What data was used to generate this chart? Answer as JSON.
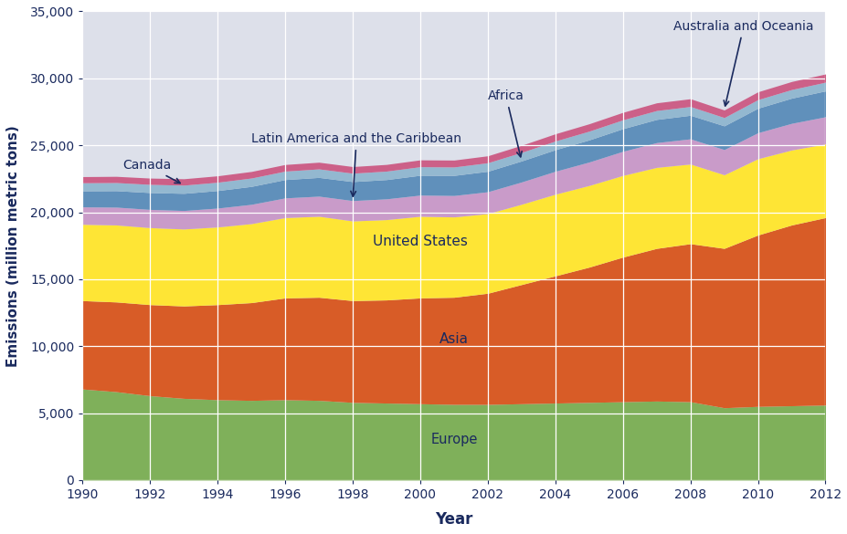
{
  "years": [
    1990,
    1991,
    1992,
    1993,
    1994,
    1995,
    1996,
    1997,
    1998,
    1999,
    2000,
    2001,
    2002,
    2003,
    2004,
    2005,
    2006,
    2007,
    2008,
    2009,
    2010,
    2011,
    2012
  ],
  "europe": [
    6800,
    6600,
    6300,
    6100,
    6000,
    5950,
    6000,
    5950,
    5800,
    5750,
    5700,
    5650,
    5650,
    5700,
    5750,
    5800,
    5850,
    5900,
    5850,
    5400,
    5500,
    5550,
    5600
  ],
  "asia": [
    6600,
    6700,
    6800,
    6900,
    7100,
    7300,
    7600,
    7700,
    7600,
    7700,
    7900,
    8000,
    8300,
    8900,
    9500,
    10100,
    10800,
    11400,
    11800,
    11900,
    12800,
    13500,
    14000
  ],
  "united_states": [
    5700,
    5750,
    5750,
    5750,
    5800,
    5900,
    6000,
    6050,
    5950,
    6000,
    6100,
    6000,
    5950,
    6000,
    6100,
    6100,
    6100,
    6050,
    5950,
    5500,
    5700,
    5600,
    5500
  ],
  "latin_america": [
    1300,
    1330,
    1360,
    1380,
    1410,
    1440,
    1470,
    1500,
    1520,
    1550,
    1580,
    1600,
    1630,
    1660,
    1710,
    1750,
    1800,
    1850,
    1880,
    1880,
    1940,
    1990,
    2030
  ],
  "africa": [
    1200,
    1230,
    1260,
    1280,
    1310,
    1340,
    1370,
    1400,
    1420,
    1440,
    1480,
    1500,
    1530,
    1570,
    1610,
    1650,
    1690,
    1730,
    1760,
    1770,
    1830,
    1880,
    1930
  ],
  "canada": [
    600,
    605,
    610,
    615,
    620,
    625,
    630,
    635,
    625,
    630,
    640,
    630,
    635,
    640,
    650,
    655,
    660,
    665,
    655,
    620,
    640,
    645,
    650
  ],
  "australia_oceania": [
    460,
    465,
    470,
    475,
    480,
    490,
    495,
    500,
    495,
    500,
    510,
    515,
    520,
    530,
    540,
    550,
    560,
    575,
    580,
    565,
    585,
    600,
    615
  ],
  "colors": {
    "europe": "#7fb05a",
    "asia": "#d85c27",
    "united_states": "#fee535",
    "latin_america": "#c99bc9",
    "africa": "#6090bb",
    "canada": "#93b8d0",
    "australia_oceania": "#cc6088"
  },
  "background_color": "#dde0ea",
  "plot_bg_color": "#dde0ea",
  "ylabel": "Emissions (million metric tons)",
  "xlabel": "Year",
  "ylim": [
    0,
    35000
  ],
  "yticks": [
    0,
    5000,
    10000,
    15000,
    20000,
    25000,
    30000,
    35000
  ],
  "xticks": [
    1990,
    1992,
    1994,
    1996,
    1998,
    2000,
    2002,
    2004,
    2006,
    2008,
    2010,
    2012
  ]
}
